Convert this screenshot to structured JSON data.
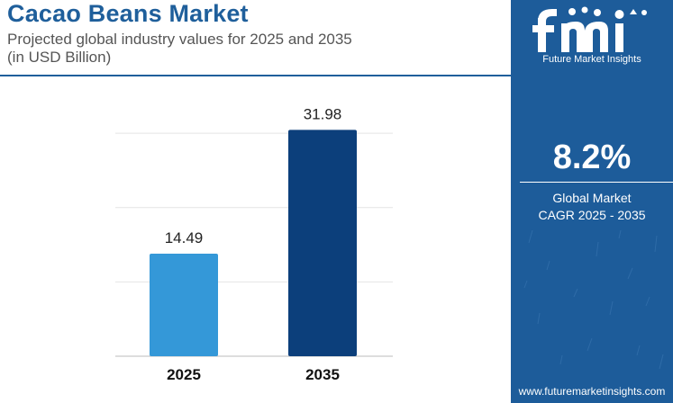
{
  "header": {
    "title": "Cacao Beans Market",
    "subtitle_line1": "Projected global industry values for 2025 and 2035",
    "subtitle_line2": "(in USD Billion)"
  },
  "chart_data": {
    "type": "bar",
    "title": "Cacao Beans Market",
    "subtitle": "Projected global industry values for 2025 and 2035 (in USD Billion)",
    "categories": [
      "2025",
      "2035"
    ],
    "values": [
      14.49,
      31.98
    ],
    "value_labels": [
      "14.49",
      "31.98"
    ],
    "bar_colors": [
      "#3498d8",
      "#0c3f7b"
    ],
    "xlabel": "",
    "ylabel": "",
    "ylim": [
      0,
      34
    ],
    "grid": true,
    "legend": "none"
  },
  "panel": {
    "logo_text": "fmi",
    "logo_tagline": "Future Market Insights",
    "cagr_value": "8.2%",
    "cagr_label_line1": "Global Market",
    "cagr_label_line2": "CAGR 2025 - 2035",
    "website": "www.futuremarketinsights.com",
    "background_color": "#1d5c9a"
  }
}
